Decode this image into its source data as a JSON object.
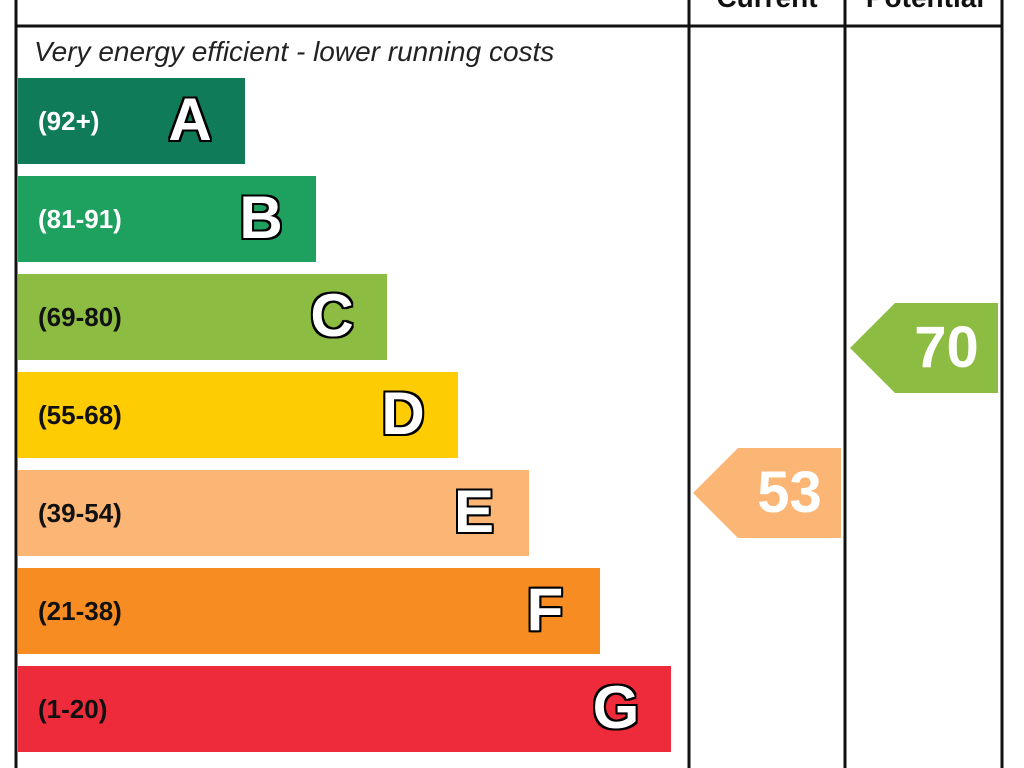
{
  "chart_data": {
    "type": "bar",
    "headers": {
      "current": "Current",
      "potential": "Potential"
    },
    "top_note": "Very energy efficient - lower running costs",
    "bands": [
      {
        "letter": "A",
        "range": "(92+)",
        "min": 92,
        "max": 100,
        "color": "#0f7b58",
        "range_text_color": "#ffffff"
      },
      {
        "letter": "B",
        "range": "(81-91)",
        "min": 81,
        "max": 91,
        "color": "#1ea05f",
        "range_text_color": "#ffffff"
      },
      {
        "letter": "C",
        "range": "(69-80)",
        "min": 69,
        "max": 80,
        "color": "#8cbc42",
        "range_text_color": "#111111"
      },
      {
        "letter": "D",
        "range": "(55-68)",
        "min": 55,
        "max": 68,
        "color": "#fecc03",
        "range_text_color": "#111111"
      },
      {
        "letter": "E",
        "range": "(39-54)",
        "min": 39,
        "max": 54,
        "color": "#fbb675",
        "range_text_color": "#111111"
      },
      {
        "letter": "F",
        "range": "(21-38)",
        "min": 21,
        "max": 38,
        "color": "#f68c22",
        "range_text_color": "#111111"
      },
      {
        "letter": "G",
        "range": "(1-20)",
        "min": 1,
        "max": 20,
        "color": "#ee2b3b",
        "range_text_color": "#111111"
      }
    ],
    "current": {
      "value": "53",
      "band": "E",
      "color": "#fbb675"
    },
    "potential": {
      "value": "70",
      "band": "C",
      "color": "#8cbc42"
    }
  }
}
